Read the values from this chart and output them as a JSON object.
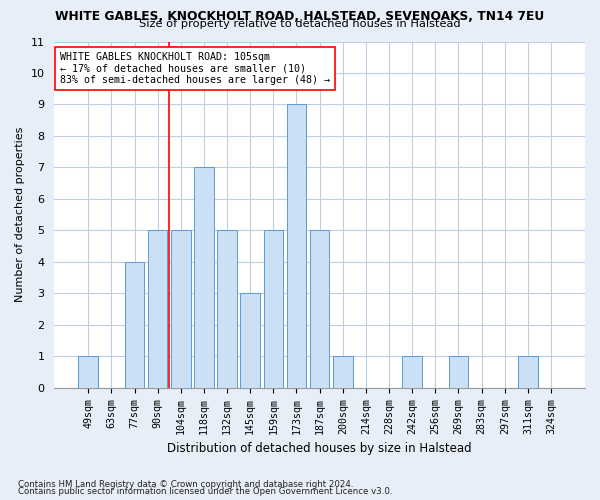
{
  "title": "WHITE GABLES, KNOCKHOLT ROAD, HALSTEAD, SEVENOAKS, TN14 7EU",
  "subtitle": "Size of property relative to detached houses in Halstead",
  "xlabel": "Distribution of detached houses by size in Halstead",
  "ylabel": "Number of detached properties",
  "categories": [
    "49sqm",
    "63sqm",
    "77sqm",
    "90sqm",
    "104sqm",
    "118sqm",
    "132sqm",
    "145sqm",
    "159sqm",
    "173sqm",
    "187sqm",
    "200sqm",
    "214sqm",
    "228sqm",
    "242sqm",
    "256sqm",
    "269sqm",
    "283sqm",
    "297sqm",
    "311sqm",
    "324sqm"
  ],
  "values": [
    1,
    0,
    4,
    5,
    5,
    7,
    5,
    3,
    5,
    9,
    5,
    1,
    0,
    0,
    1,
    0,
    1,
    0,
    0,
    1,
    0
  ],
  "bar_color": "#cce0f5",
  "bar_edge_color": "#5b9bd5",
  "red_line_index": 4,
  "annotation_text": "WHITE GABLES KNOCKHOLT ROAD: 105sqm\n← 17% of detached houses are smaller (10)\n83% of semi-detached houses are larger (48) →",
  "ylim": [
    0,
    11
  ],
  "yticks": [
    0,
    1,
    2,
    3,
    4,
    5,
    6,
    7,
    8,
    9,
    10,
    11
  ],
  "footer1": "Contains HM Land Registry data © Crown copyright and database right 2024.",
  "footer2": "Contains public sector information licensed under the Open Government Licence v3.0.",
  "bg_color": "#e8eef8",
  "plot_bg_color": "#ffffff",
  "grid_color": "#c0cce0"
}
